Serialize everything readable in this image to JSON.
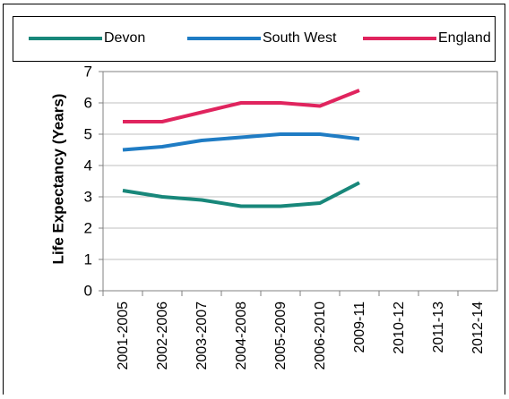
{
  "chart_data": {
    "type": "line",
    "y_label": "Life Expectancy (Years)",
    "categories": [
      "2001-2005",
      "2002-2006",
      "2003-2007",
      "2004-2008",
      "2005-2009",
      "2006-2010",
      "2009-11",
      "2010-12",
      "2011-13",
      "2012-14"
    ],
    "series": [
      {
        "name": "Devon",
        "color": "#18877a",
        "values": [
          3.2,
          3.0,
          2.9,
          2.7,
          2.7,
          2.8,
          3.45,
          null,
          null,
          null
        ]
      },
      {
        "name": "South West",
        "color": "#1f7cc4",
        "values": [
          4.5,
          4.6,
          4.8,
          4.9,
          5.0,
          5.0,
          4.85,
          null,
          null,
          null
        ]
      },
      {
        "name": "England",
        "color": "#e0245e",
        "values": [
          5.4,
          5.4,
          5.7,
          6.0,
          6.0,
          5.9,
          6.4,
          null,
          null,
          null
        ]
      }
    ],
    "ylim": [
      0,
      7
    ],
    "yticks": [
      0,
      1,
      2,
      3,
      4,
      5,
      6,
      7
    ],
    "grid": true
  }
}
